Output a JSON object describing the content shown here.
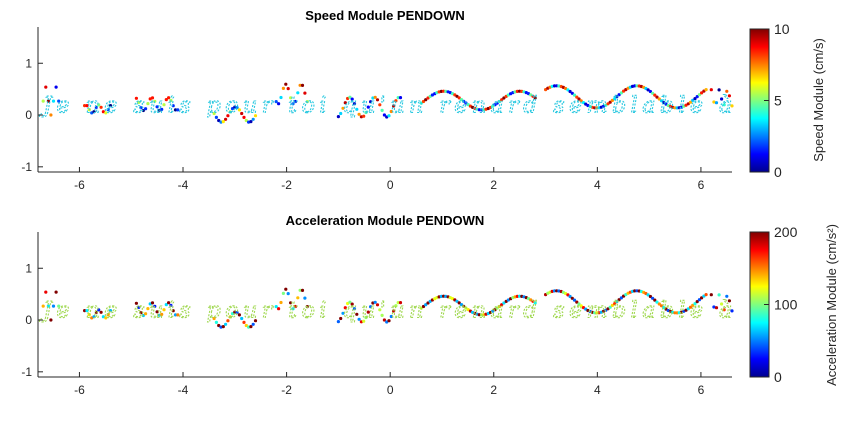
{
  "chart_data": [
    {
      "type": "scatter",
      "title": "Speed Module PENDOWN",
      "xlim": [
        -6.8,
        6.6
      ],
      "ylim": [
        -1.1,
        1.7
      ],
      "xticks": [
        -6,
        -4,
        -2,
        0,
        2,
        4,
        6
      ],
      "yticks": [
        -1,
        0,
        1
      ],
      "xtick_labels": [
        "-6",
        "-4",
        "-2",
        "0",
        "2",
        "4",
        "6"
      ],
      "ytick_labels": [
        "-1",
        "0",
        "1"
      ],
      "colorbar": {
        "label": "Speed Module (cm/s)",
        "range": [
          0,
          10
        ],
        "ticks": [
          0,
          5,
          10
        ],
        "tick_labels": [
          "0",
          "5",
          "10"
        ],
        "colormap": "jet"
      },
      "annotation_text": "Je ne suis pour toi qu'un renard semblable à",
      "word_strokes": [
        {
          "word": "Je",
          "x": [
            -6.7,
            -6.4
          ],
          "y": [
            -0.3,
            0.9
          ],
          "speed_level": 0.55
        },
        {
          "word": "ne",
          "x": [
            -5.9,
            -5.4
          ],
          "y": [
            -0.05,
            0.3
          ],
          "speed_level": 0.45
        },
        {
          "word": "suis",
          "x": [
            -4.9,
            -4.1
          ],
          "y": [
            -0.05,
            0.5
          ],
          "speed_level": 0.45
        },
        {
          "word": "pour",
          "x": [
            -3.4,
            -2.6
          ],
          "y": [
            -0.3,
            0.35
          ],
          "speed_level": 0.5
        },
        {
          "word": "toi",
          "x": [
            -2.2,
            -1.6
          ],
          "y": [
            0.0,
            0.85
          ],
          "speed_level": 0.55
        },
        {
          "word": "qu'un",
          "x": [
            -1.0,
            0.2
          ],
          "y": [
            -0.25,
            0.6
          ],
          "speed_level": 0.5
        },
        {
          "word": "renard",
          "x": [
            0.6,
            2.8
          ],
          "y": [
            -0.1,
            0.7
          ],
          "speed_level": 0.55
        },
        {
          "word": "semblable",
          "x": [
            3.0,
            6.1
          ],
          "y": [
            -0.1,
            0.85
          ],
          "speed_level": 0.5
        },
        {
          "word": "à",
          "x": [
            6.2,
            6.6
          ],
          "y": [
            0.0,
            0.7
          ],
          "speed_level": 0.45
        }
      ]
    },
    {
      "type": "scatter",
      "title": "Acceleration Module PENDOWN",
      "xlim": [
        -6.8,
        6.6
      ],
      "ylim": [
        -1.1,
        1.7
      ],
      "xticks": [
        -6,
        -4,
        -2,
        0,
        2,
        4,
        6
      ],
      "yticks": [
        -1,
        0,
        1
      ],
      "xtick_labels": [
        "-6",
        "-4",
        "-2",
        "0",
        "2",
        "4",
        "6"
      ],
      "ytick_labels": [
        "-1",
        "0",
        "1"
      ],
      "colorbar": {
        "label": "Acceleration Module (cm/s²)",
        "range": [
          0,
          200
        ],
        "ticks": [
          0,
          100,
          200
        ],
        "tick_labels": [
          "0",
          "100",
          "200"
        ],
        "colormap": "jet"
      },
      "annotation_text": "Je ne suis pour toi qu'un renard semblable à",
      "word_strokes": [
        {
          "word": "Je",
          "x": [
            -6.7,
            -6.4
          ],
          "y": [
            -0.3,
            0.9
          ],
          "speed_level": 0.7
        },
        {
          "word": "ne",
          "x": [
            -5.9,
            -5.4
          ],
          "y": [
            -0.05,
            0.3
          ],
          "speed_level": 0.6
        },
        {
          "word": "suis",
          "x": [
            -4.9,
            -4.1
          ],
          "y": [
            -0.05,
            0.5
          ],
          "speed_level": 0.6
        },
        {
          "word": "pour",
          "x": [
            -3.4,
            -2.6
          ],
          "y": [
            -0.3,
            0.35
          ],
          "speed_level": 0.65
        },
        {
          "word": "toi",
          "x": [
            -2.2,
            -1.6
          ],
          "y": [
            0.0,
            0.85
          ],
          "speed_level": 0.7
        },
        {
          "word": "qu'un",
          "x": [
            -1.0,
            0.2
          ],
          "y": [
            -0.25,
            0.6
          ],
          "speed_level": 0.65
        },
        {
          "word": "renard",
          "x": [
            0.6,
            2.8
          ],
          "y": [
            -0.1,
            0.7
          ],
          "speed_level": 0.7
        },
        {
          "word": "semblable",
          "x": [
            3.0,
            6.1
          ],
          "y": [
            -0.1,
            0.85
          ],
          "speed_level": 0.65
        },
        {
          "word": "à",
          "x": [
            6.2,
            6.6
          ],
          "y": [
            0.0,
            0.7
          ],
          "speed_level": 0.6
        }
      ]
    }
  ]
}
